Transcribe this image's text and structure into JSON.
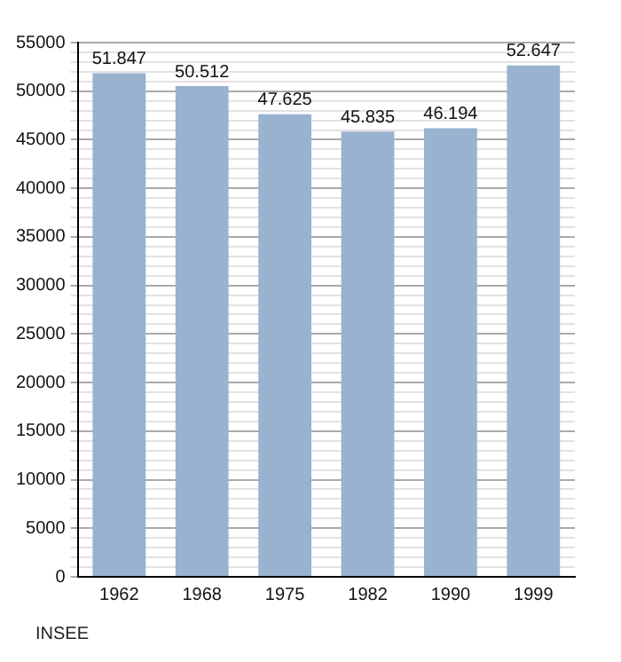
{
  "chart_data": {
    "type": "bar",
    "categories": [
      "1962",
      "1968",
      "1975",
      "1982",
      "1990",
      "1999"
    ],
    "values": [
      51847,
      50512,
      47625,
      45835,
      46194,
      52647
    ],
    "value_labels": [
      "51.847",
      "50.512",
      "47.625",
      "45.835",
      "46.194",
      "52.647"
    ],
    "color": "#98b2cf",
    "ylim": [
      0,
      55000
    ],
    "yticks": [
      0,
      {
        "value": 1000,
        "label": null
      },
      {
        "value": 2000,
        "label": null
      },
      {
        "value": 3000,
        "label": null
      },
      {
        "value": 4000,
        "label": null
      },
      5000,
      {
        "value": 6000,
        "label": null
      },
      {
        "value": 7000,
        "label": null
      },
      {
        "value": 8000,
        "label": null
      },
      {
        "value": 9000,
        "label": null
      },
      10000,
      {
        "value": 11000,
        "label": null
      },
      {
        "value": 12000,
        "label": null
      },
      {
        "value": 13000,
        "label": null
      },
      {
        "value": 14000,
        "label": null
      },
      15000,
      {
        "value": 16000,
        "label": null
      },
      {
        "value": 17000,
        "label": null
      },
      {
        "value": 18000,
        "label": null
      },
      {
        "value": 19000,
        "label": null
      },
      20000,
      {
        "value": 21000,
        "label": null
      },
      {
        "value": 22000,
        "label": null
      },
      {
        "value": 23000,
        "label": null
      },
      {
        "value": 24000,
        "label": null
      },
      25000,
      {
        "value": 26000,
        "label": null
      },
      {
        "value": 27000,
        "label": null
      },
      {
        "value": 28000,
        "label": null
      },
      {
        "value": 29000,
        "label": null
      },
      30000,
      {
        "value": 31000,
        "label": null
      },
      {
        "value": 32000,
        "label": null
      },
      {
        "value": 33000,
        "label": null
      },
      {
        "value": 34000,
        "label": null
      },
      35000,
      {
        "value": 36000,
        "label": null
      },
      {
        "value": 37000,
        "label": null
      },
      {
        "value": 38000,
        "label": null
      },
      {
        "value": 39000,
        "label": null
      },
      40000,
      {
        "value": 41000,
        "label": null
      },
      {
        "value": 42000,
        "label": null
      },
      {
        "value": 43000,
        "label": null
      },
      {
        "value": 44000,
        "label": null
      },
      45000,
      {
        "value": 46000,
        "label": null
      },
      {
        "value": 47000,
        "label": null
      },
      {
        "value": 48000,
        "label": null
      },
      {
        "value": 49000,
        "label": null
      },
      50000,
      {
        "value": 51000,
        "label": null
      },
      {
        "value": 52000,
        "label": null
      },
      {
        "value": 53000,
        "label": null
      },
      {
        "value": 54000,
        "label": null
      },
      55000
    ],
    "grid": "y",
    "legend": false,
    "annotations": [
      "INSEE"
    ]
  }
}
